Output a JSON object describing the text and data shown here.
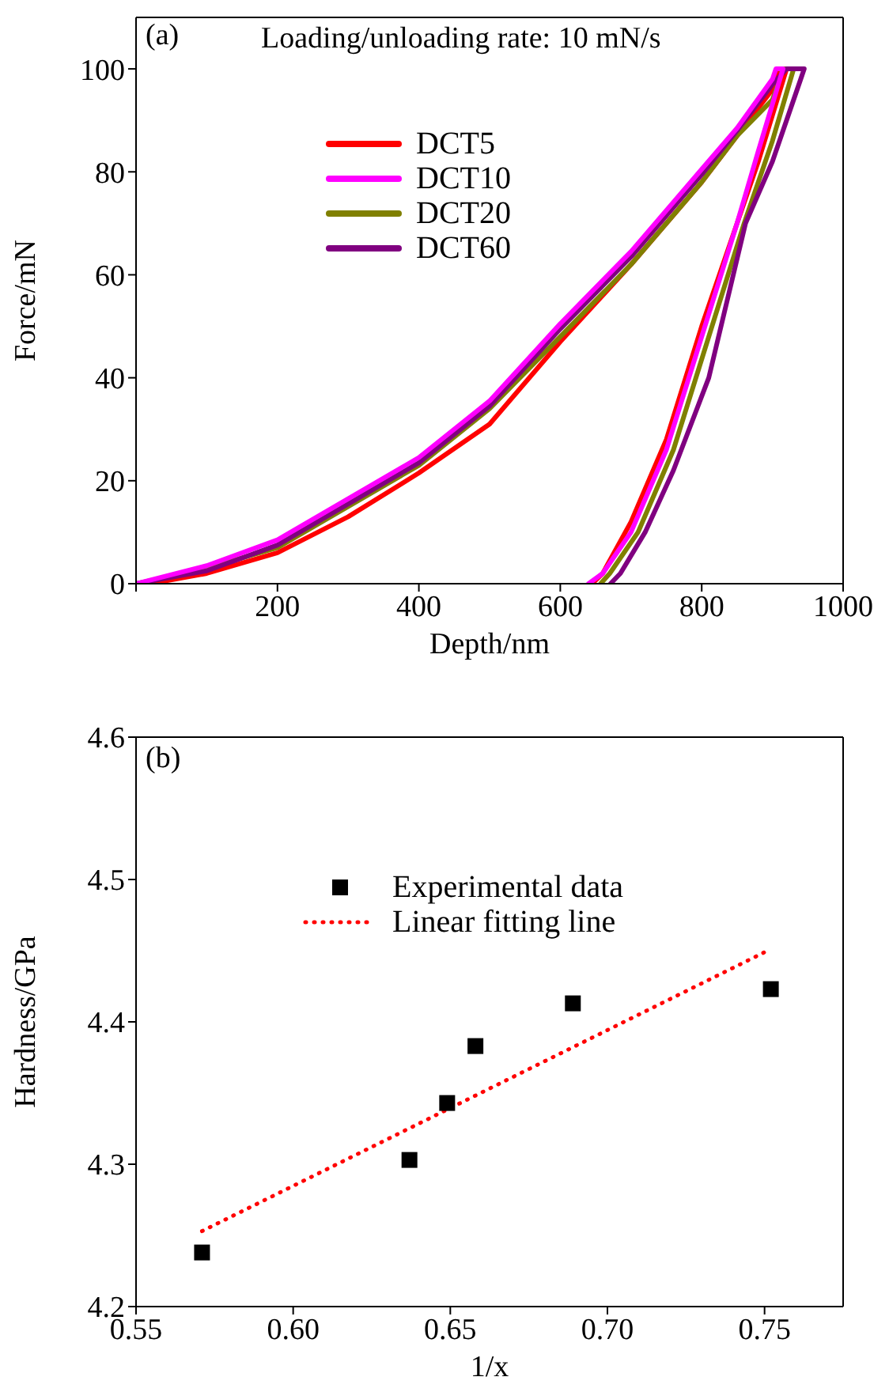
{
  "chart_data": [
    {
      "type": "line",
      "xlabel": "Depth/nm",
      "ylabel": "Force/mN",
      "annotations": [
        "(a)",
        "Loading/unloading rate: 10 mN/s"
      ],
      "xlim": [
        0,
        1000
      ],
      "xticks": [
        {
          "value": 0,
          "label": null
        },
        200,
        400,
        600,
        800,
        1000
      ],
      "ylim": [
        0,
        110
      ],
      "yticks": [
        0,
        20,
        40,
        60,
        80,
        100
      ],
      "legend": "top",
      "marker": "none",
      "line_style": "solid",
      "series": [
        {
          "name": "DCT5",
          "color": "#ff0000",
          "x": [
            20,
            100,
            200,
            300,
            400,
            500,
            600,
            700,
            800,
            850,
            900,
            910,
            920,
            880,
            850,
            800,
            750,
            700,
            660,
            645
          ],
          "values": [
            0,
            2,
            6,
            13,
            21.5,
            31,
            47,
            62,
            78,
            87,
            96,
            100,
            100,
            82,
            70,
            50,
            28,
            12,
            2,
            0
          ]
        },
        {
          "name": "DCT10",
          "color": "#ff00ff",
          "x": [
            0,
            100,
            200,
            300,
            400,
            500,
            600,
            700,
            800,
            850,
            900,
            905,
            915,
            880,
            850,
            800,
            750,
            700,
            660,
            640
          ],
          "values": [
            0,
            3.5,
            8.5,
            16.5,
            24.5,
            35.5,
            50.5,
            64.5,
            80.5,
            88.5,
            98,
            100,
            100,
            84,
            70,
            48,
            26,
            10,
            2,
            0
          ]
        },
        {
          "name": "DCT20",
          "color": "#808000",
          "x": [
            0,
            100,
            200,
            300,
            400,
            500,
            600,
            700,
            800,
            850,
            900,
            915,
            930,
            900,
            860,
            810,
            760,
            710,
            670,
            657
          ],
          "values": [
            0,
            3,
            7,
            15,
            23,
            34,
            48,
            62,
            78,
            87,
            94,
            100,
            100,
            86,
            70,
            48,
            26,
            10,
            2,
            0
          ]
        },
        {
          "name": "DCT60",
          "color": "#800080",
          "x": [
            0,
            100,
            200,
            300,
            400,
            500,
            600,
            700,
            800,
            850,
            900,
            920,
            945,
            900,
            862,
            810,
            760,
            720,
            685,
            671
          ],
          "values": [
            0,
            2.5,
            7.5,
            15.5,
            23.5,
            34.5,
            49.5,
            63.5,
            79.5,
            88,
            97,
            100,
            100,
            82,
            70,
            40,
            22,
            10,
            2,
            0
          ]
        }
      ]
    },
    {
      "type": "scatter",
      "xlabel": "1/x",
      "ylabel": "Hardness/GPa",
      "annotations": [
        "(b)"
      ],
      "xlim": [
        0.55,
        0.775
      ],
      "xticks": [
        0.55,
        {
          "value": 0.6,
          "label": "0.60"
        },
        0.65,
        {
          "value": 0.7,
          "label": "0.70"
        },
        0.75
      ],
      "ylim": [
        4.2,
        4.6
      ],
      "yticks": [
        4.2,
        4.3,
        4.4,
        4.5,
        4.6
      ],
      "legend": "top",
      "series": [
        {
          "name": "Experimental data",
          "color": "#000000",
          "marker": "square",
          "x": [
            0.571,
            0.637,
            0.649,
            0.658,
            0.689,
            0.752
          ],
          "values": [
            4.238,
            4.303,
            4.343,
            4.383,
            4.413,
            4.423
          ]
        },
        {
          "name": "Linear fitting line",
          "type": "line",
          "color": "#ff0000",
          "line_style": "dotted",
          "marker": "none",
          "x": [
            0.571,
            0.751
          ],
          "values": [
            4.253,
            4.45
          ]
        }
      ]
    }
  ]
}
